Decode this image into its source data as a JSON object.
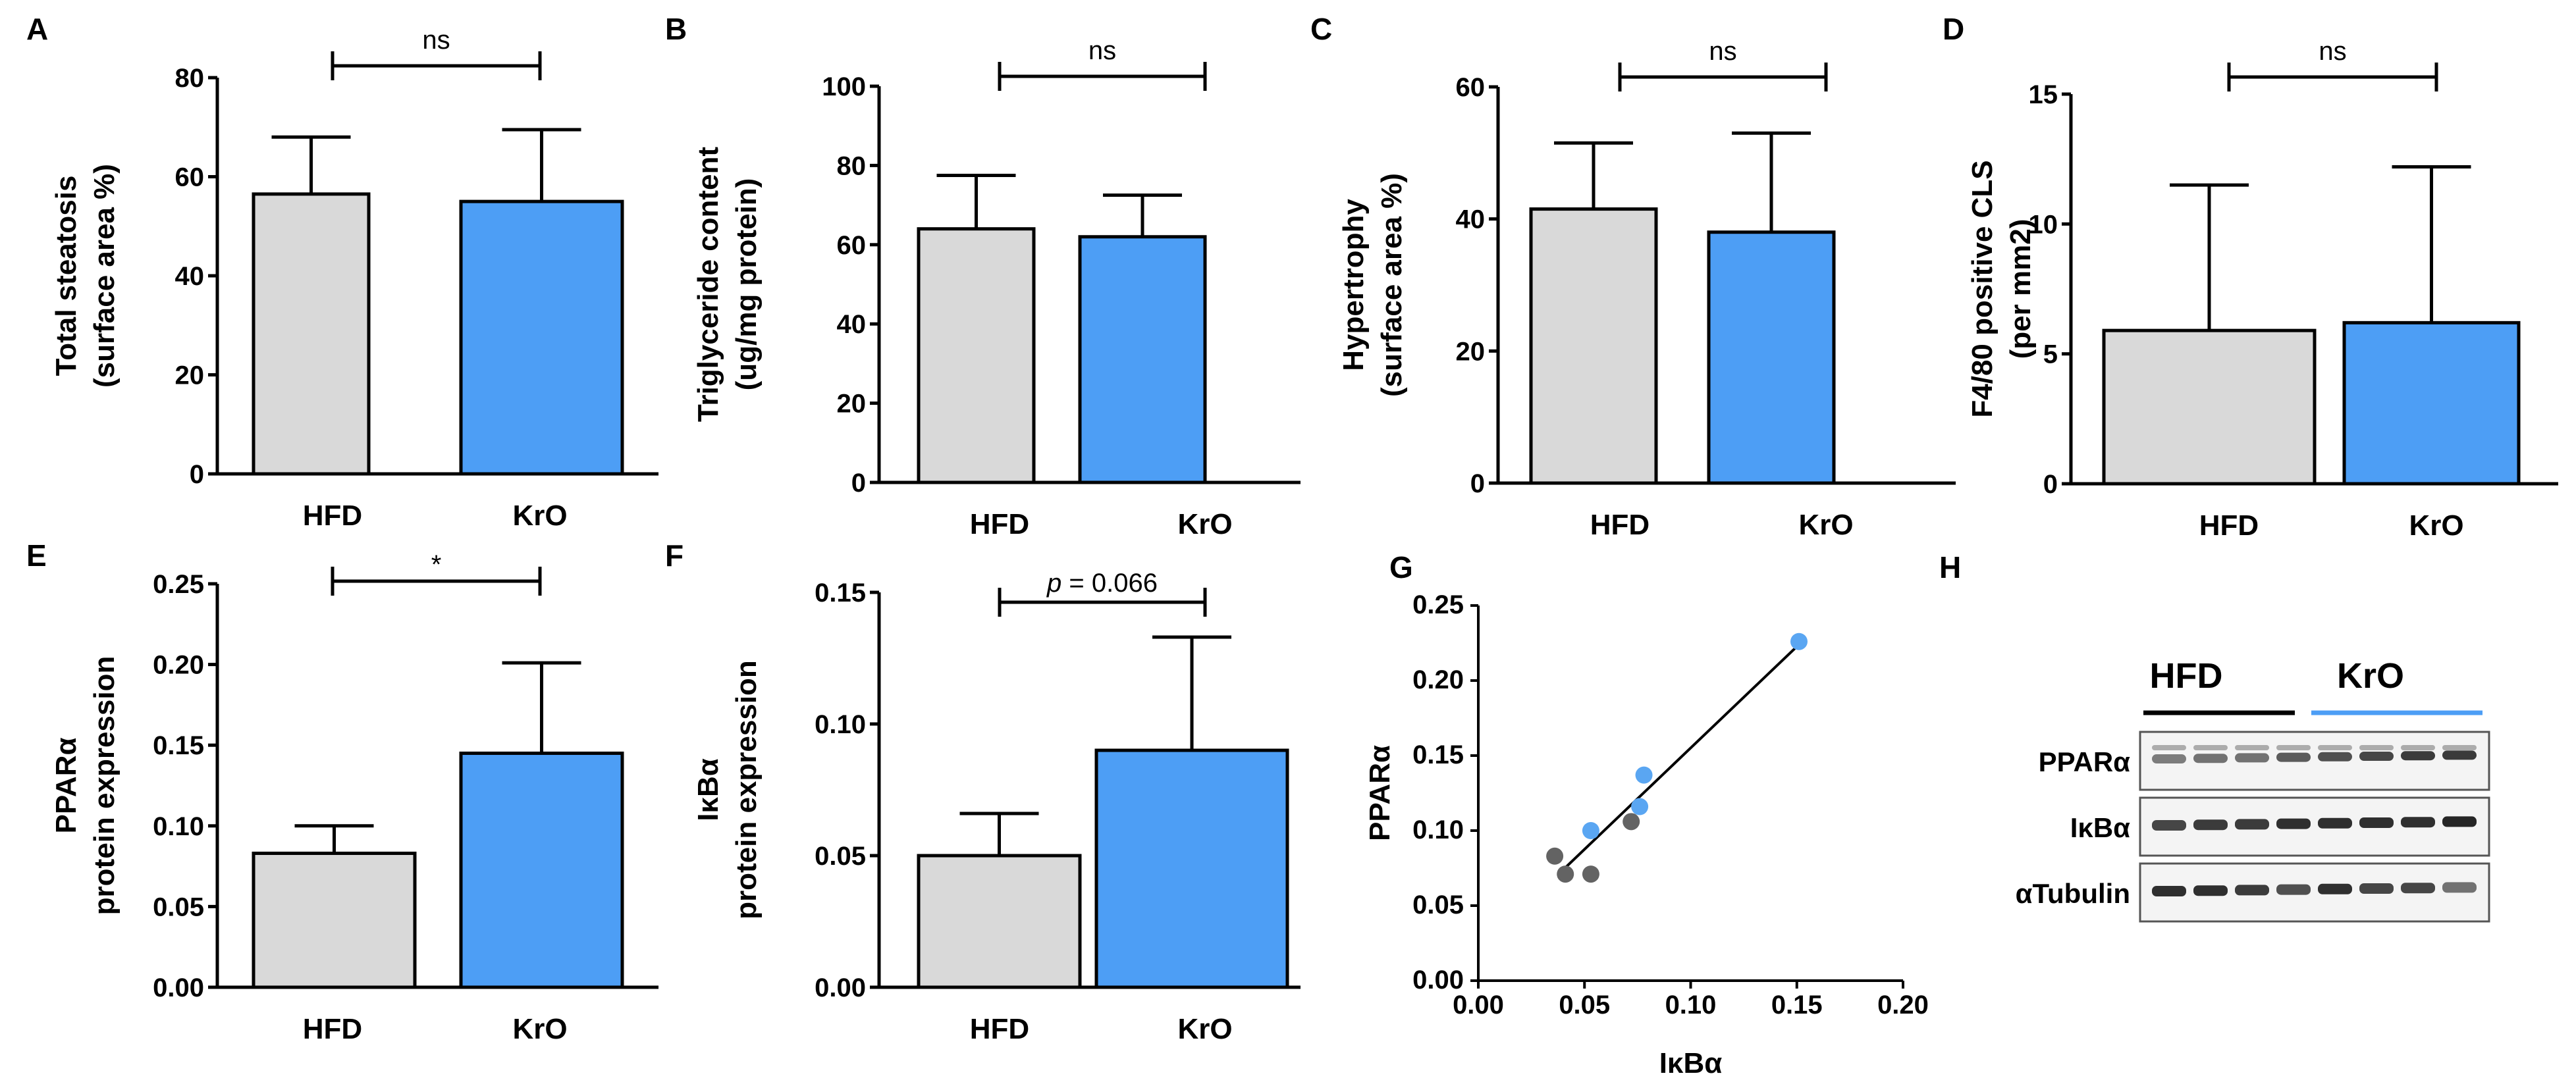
{
  "colors": {
    "hfd": "#d9d9d9",
    "kro": "#4d9ef5",
    "axis": "#000000",
    "hfd_point": "#636363",
    "kro_point": "#5aa6f2"
  },
  "chart_data": [
    {
      "id": "A",
      "panel_label": "A",
      "type": "bar",
      "categories": [
        "HFD",
        "KrO"
      ],
      "values": [
        56.5,
        55
      ],
      "errors": [
        11.5,
        14.5
      ],
      "ylabel_lines": [
        "Total steatosis",
        "(surface area %)"
      ],
      "ylim": [
        0,
        80
      ],
      "yticks": [
        "0",
        "20",
        "40",
        "60",
        "80"
      ],
      "significance": "ns"
    },
    {
      "id": "B",
      "panel_label": "B",
      "type": "bar",
      "categories": [
        "HFD",
        "KrO"
      ],
      "values": [
        64,
        62
      ],
      "errors": [
        13.5,
        10.5
      ],
      "ylabel_lines": [
        "Triglyceride content",
        "(ug/mg protein)"
      ],
      "ylim": [
        0,
        100
      ],
      "yticks": [
        "0",
        "20",
        "40",
        "60",
        "80",
        "100"
      ],
      "significance": "ns"
    },
    {
      "id": "C",
      "panel_label": "C",
      "type": "bar",
      "categories": [
        "HFD",
        "KrO"
      ],
      "values": [
        41.5,
        38
      ],
      "errors": [
        10,
        15
      ],
      "ylabel_lines": [
        "Hypertrophy",
        "(surface area %)"
      ],
      "ylim": [
        0,
        60
      ],
      "yticks": [
        "0",
        "20",
        "40",
        "60"
      ],
      "significance": "ns"
    },
    {
      "id": "D",
      "panel_label": "D",
      "type": "bar",
      "categories": [
        "HFD",
        "KrO"
      ],
      "values": [
        5.9,
        6.2
      ],
      "errors": [
        5.6,
        6
      ],
      "ylabel_lines": [
        "F4/80 positive CLS",
        "(per mm2)"
      ],
      "ylim": [
        0,
        15
      ],
      "yticks": [
        "0",
        "5",
        "10",
        "15"
      ],
      "significance": "ns"
    },
    {
      "id": "E",
      "panel_label": "E",
      "type": "bar",
      "categories": [
        "HFD",
        "KrO"
      ],
      "values": [
        0.083,
        0.145
      ],
      "errors": [
        0.017,
        0.056
      ],
      "ylabel_lines": [
        "PPARα",
        "protein expression"
      ],
      "ylim": [
        0,
        0.25
      ],
      "yticks": [
        "0.00",
        "0.05",
        "0.10",
        "0.15",
        "0.20",
        "0.25"
      ],
      "significance": "*"
    },
    {
      "id": "F",
      "panel_label": "F",
      "type": "bar",
      "categories": [
        "HFD",
        "KrO"
      ],
      "values": [
        0.05,
        0.09
      ],
      "errors": [
        0.016,
        0.043
      ],
      "ylabel_lines": [
        "IκBα",
        "protein expression"
      ],
      "ylim": [
        0,
        0.15
      ],
      "yticks": [
        "0.00",
        "0.05",
        "0.10",
        "0.15"
      ],
      "significance_p": "p",
      "significance": " = 0.066"
    },
    {
      "id": "G",
      "panel_label": "G",
      "type": "scatter",
      "xlabel": "IκBα",
      "ylabel": "PPARα",
      "xlim": [
        0,
        0.2
      ],
      "ylim": [
        0,
        0.25
      ],
      "xticks": [
        "0.00",
        "0.05",
        "0.10",
        "0.15",
        "0.20"
      ],
      "yticks": [
        "0.00",
        "0.05",
        "0.10",
        "0.15",
        "0.20",
        "0.25"
      ],
      "series": [
        {
          "name": "HFD",
          "points": [
            [
              0.036,
              0.083
            ],
            [
              0.041,
              0.071
            ],
            [
              0.053,
              0.071
            ],
            [
              0.072,
              0.106
            ]
          ]
        },
        {
          "name": "KrO",
          "points": [
            [
              0.053,
              0.1
            ],
            [
              0.076,
              0.116
            ],
            [
              0.078,
              0.137
            ],
            [
              0.151,
              0.226
            ]
          ]
        }
      ],
      "fit": [
        [
          0.04,
          0.074
        ],
        [
          0.151,
          0.224
        ]
      ]
    }
  ],
  "blot": {
    "panel_label": "H",
    "groups": [
      "HFD",
      "KrO"
    ],
    "rows": [
      "PPARα",
      "IκBα",
      "αTubulin"
    ]
  }
}
